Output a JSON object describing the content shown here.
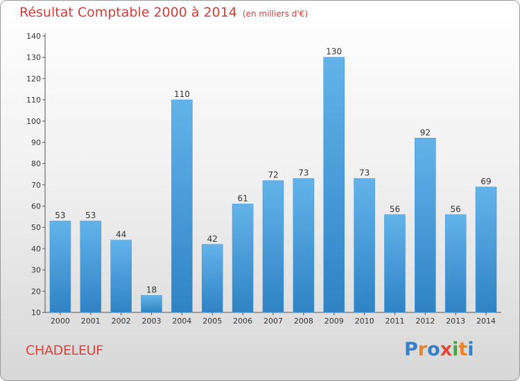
{
  "title": "Résultat Comptable 2000 à 2014",
  "subtitle": "(en milliers d'€)",
  "commune": "CHADELEUF",
  "logo": {
    "text": "Proxiti",
    "letter_colors": [
      "#3a7fc4",
      "#e8832a",
      "#3a7fc4",
      "#e04a3a",
      "#4aa342",
      "#e8832a",
      "#3a7fc4"
    ]
  },
  "colors": {
    "bar_top": "#63b3ea",
    "bar_bottom": "#2f83c4",
    "title": "#d13d37"
  },
  "chart_data": {
    "type": "bar",
    "title": "Résultat Comptable 2000 à 2014",
    "subtitle": "(en milliers d'€)",
    "categories": [
      "2000",
      "2001",
      "2002",
      "2003",
      "2004",
      "2005",
      "2006",
      "2007",
      "2008",
      "2009",
      "2010",
      "2011",
      "2012",
      "2013",
      "2014"
    ],
    "values": [
      53,
      53,
      44,
      18,
      110,
      42,
      61,
      72,
      73,
      130,
      73,
      56,
      92,
      56,
      69
    ],
    "ylim": [
      10,
      140
    ],
    "yticks": [
      10,
      20,
      30,
      40,
      50,
      60,
      70,
      80,
      90,
      100,
      110,
      120,
      130,
      140
    ],
    "grid": false,
    "data_labels": true
  }
}
